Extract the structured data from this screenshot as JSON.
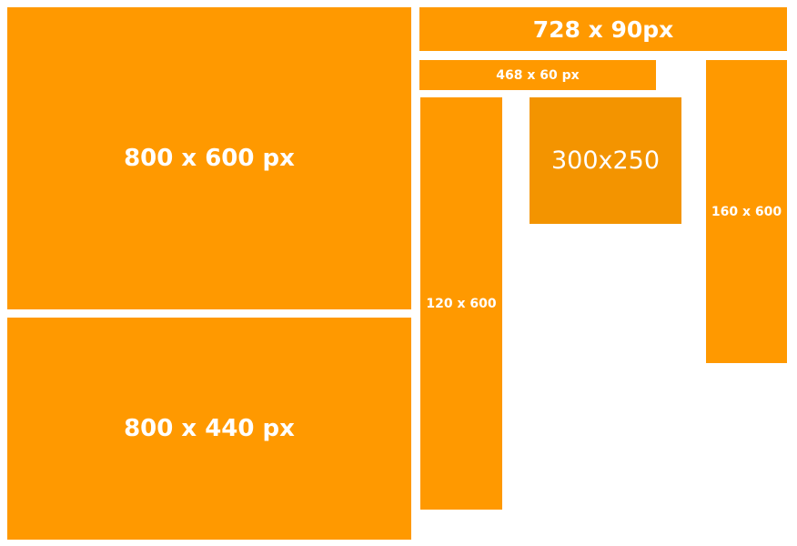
{
  "colors": {
    "background": "#ffffff",
    "box_primary": "#ff9900",
    "box_secondary": "#f39400",
    "text": "#ffffff"
  },
  "boxes": {
    "b800x600": {
      "label": "800 x 600 px"
    },
    "b800x440": {
      "label": "800 x 440 px"
    },
    "b728x90": {
      "label": "728 x 90px"
    },
    "b468x60": {
      "label": "468 x 60 px"
    },
    "b120x600": {
      "label": "120 x 600"
    },
    "b300x250": {
      "label": "300x250"
    },
    "b160x600": {
      "label": "160 x 600"
    }
  }
}
